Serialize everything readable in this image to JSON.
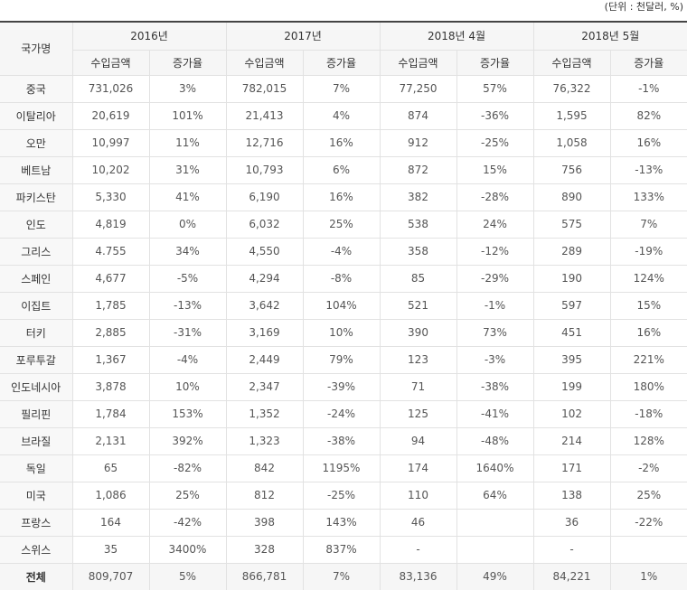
{
  "unit": "(단위 : 천달러, %)",
  "table": {
    "header": {
      "corner": "국가명",
      "groups": [
        "2016년",
        "2017년",
        "2018년 4월",
        "2018년 5월"
      ],
      "subheaders": [
        "수입금액",
        "증가율",
        "수입금액",
        "증가율",
        "수입금액",
        "증가율",
        "수입금액",
        "증가율"
      ]
    },
    "rows": [
      [
        "중국",
        "731,026",
        "3%",
        "782,015",
        "7%",
        "77,250",
        "57%",
        "76,322",
        "-1%"
      ],
      [
        "이탈리아",
        "20,619",
        "101%",
        "21,413",
        "4%",
        "874",
        "-36%",
        "1,595",
        "82%"
      ],
      [
        "오만",
        "10,997",
        "11%",
        "12,716",
        "16%",
        "912",
        "-25%",
        "1,058",
        "16%"
      ],
      [
        "베트남",
        "10,202",
        "31%",
        "10,793",
        "6%",
        "872",
        "15%",
        "756",
        "-13%"
      ],
      [
        "파키스탄",
        "5,330",
        "41%",
        "6,190",
        "16%",
        "382",
        "-28%",
        "890",
        "133%"
      ],
      [
        "인도",
        "4,819",
        "0%",
        "6,032",
        "25%",
        "538",
        "24%",
        "575",
        "7%"
      ],
      [
        "그리스",
        "4.755",
        "34%",
        "4,550",
        "-4%",
        "358",
        "-12%",
        "289",
        "-19%"
      ],
      [
        "스페인",
        "4,677",
        "-5%",
        "4,294",
        "-8%",
        "85",
        "-29%",
        "190",
        "124%"
      ],
      [
        "이집트",
        "1,785",
        "-13%",
        "3,642",
        "104%",
        "521",
        "-1%",
        "597",
        "15%"
      ],
      [
        "터키",
        "2,885",
        "-31%",
        "3,169",
        "10%",
        "390",
        "73%",
        "451",
        "16%"
      ],
      [
        "포루투갈",
        "1,367",
        "-4%",
        "2,449",
        "79%",
        "123",
        "-3%",
        "395",
        "221%"
      ],
      [
        "인도네시아",
        "3,878",
        "10%",
        "2,347",
        "-39%",
        "71",
        "-38%",
        "199",
        "180%"
      ],
      [
        "필리핀",
        "1,784",
        "153%",
        "1,352",
        "-24%",
        "125",
        "-41%",
        "102",
        "-18%"
      ],
      [
        "브라질",
        "2,131",
        "392%",
        "1,323",
        "-38%",
        "94",
        "-48%",
        "214",
        "128%"
      ],
      [
        "독일",
        "65",
        "-82%",
        "842",
        "1195%",
        "174",
        "1640%",
        "171",
        "-2%"
      ],
      [
        "미국",
        "1,086",
        "25%",
        "812",
        "-25%",
        "110",
        "64%",
        "138",
        "25%"
      ],
      [
        "프랑스",
        "164",
        "-42%",
        "398",
        "143%",
        "46",
        null,
        "36",
        "-22%"
      ],
      [
        "스위스",
        "35",
        "3400%",
        "328",
        "837%",
        "-",
        null,
        "-",
        null
      ]
    ],
    "total": [
      "전체",
      "809,707",
      "5%",
      "866,781",
      "7%",
      "83,136",
      "49%",
      "84,221",
      "1%"
    ]
  }
}
